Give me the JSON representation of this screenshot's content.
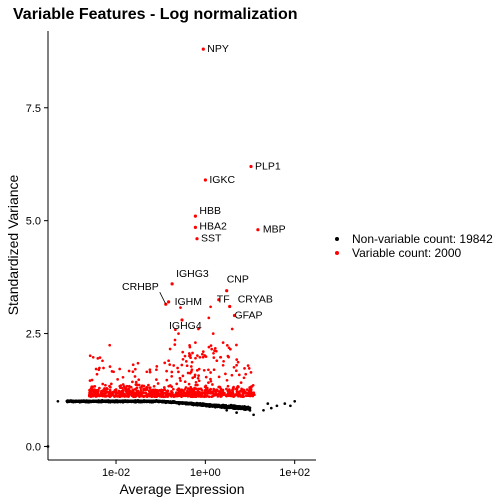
{
  "chart_data": {
    "type": "scatter",
    "title": "Variable Features - Log normalization",
    "xlabel": "Average Expression",
    "ylabel": "Standardized Variance",
    "x_scale": "log10",
    "xlim": [
      0.0003,
      300
    ],
    "ylim": [
      -0.3,
      9.2
    ],
    "x_ticks": [
      {
        "value": 0.01,
        "label": "1e-02"
      },
      {
        "value": 1,
        "label": "1e+00"
      },
      {
        "value": 100,
        "label": "1e+02"
      }
    ],
    "y_ticks": [
      {
        "value": 0,
        "label": "0.0"
      },
      {
        "value": 2.5,
        "label": "2.5"
      },
      {
        "value": 5,
        "label": "5.0"
      },
      {
        "value": 7.5,
        "label": "7.5"
      }
    ],
    "legend_position": "right",
    "colors": {
      "non_variable": "#000000",
      "variable": "#ff0000"
    },
    "series": [
      {
        "name": "Non-variable count: 19842",
        "color": "#000000"
      },
      {
        "name": "Variable count: 2000",
        "color": "#ff0000"
      }
    ],
    "labeled_points": [
      {
        "gene": "NPY",
        "x": 0.9,
        "y": 8.8
      },
      {
        "gene": "PLP1",
        "x": 10.5,
        "y": 6.2
      },
      {
        "gene": "IGKC",
        "x": 1.0,
        "y": 5.9
      },
      {
        "gene": "HBB",
        "x": 0.6,
        "y": 5.1
      },
      {
        "gene": "HBA2",
        "x": 0.6,
        "y": 4.85
      },
      {
        "gene": "MBP",
        "x": 15,
        "y": 4.8
      },
      {
        "gene": "SST",
        "x": 0.65,
        "y": 4.6
      },
      {
        "gene": "IGHG3",
        "x": 0.18,
        "y": 3.6
      },
      {
        "gene": "CNP",
        "x": 3.0,
        "y": 3.45
      },
      {
        "gene": "CRHBP",
        "x": 0.13,
        "y": 3.15
      },
      {
        "gene": "IGHM",
        "x": 0.15,
        "y": 3.2
      },
      {
        "gene": "TF",
        "x": 2.0,
        "y": 3.25
      },
      {
        "gene": "CRYAB",
        "x": 3.5,
        "y": 3.1
      },
      {
        "gene": "IGHG4",
        "x": 0.3,
        "y": 2.8
      },
      {
        "gene": "GFAP",
        "x": 4.5,
        "y": 2.9
      }
    ]
  }
}
